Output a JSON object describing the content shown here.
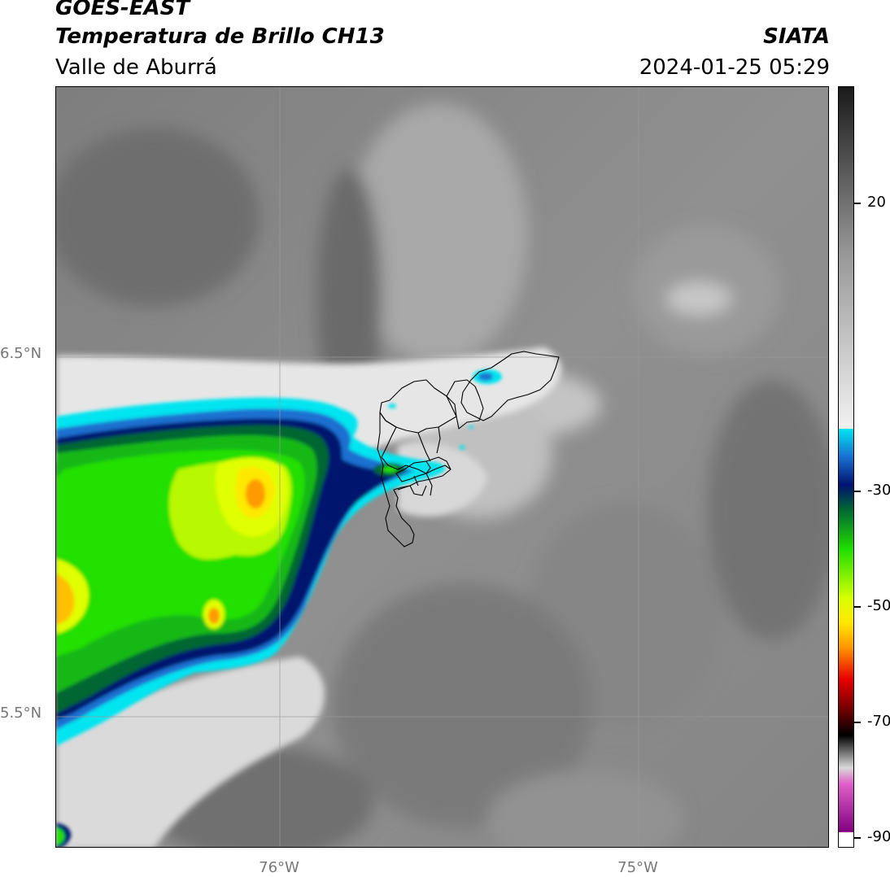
{
  "header": {
    "satellite": "GOES-EAST",
    "product": "Temperatura de Brillo CH13",
    "region": "Valle de Aburrá",
    "organization": "SIATA",
    "timestamp": "2024-01-25 05:29"
  },
  "map": {
    "lat_ticks": [
      "6.5°N",
      "5.5°N"
    ],
    "lon_ticks": [
      "76°W",
      "75°W"
    ],
    "gridlines": true
  },
  "colorbar": {
    "tick_labels": [
      "20",
      "-30",
      "-50",
      "-70",
      "-90"
    ],
    "colors": {
      "warm_dark": "#1a1a1a",
      "warm_light": "#f2f2f2",
      "cyan": "#00e5f0",
      "blue": "#0a3aa0",
      "navy": "#00136e",
      "dark_green": "#006633",
      "green": "#22e000",
      "yellow_green": "#d8ff00",
      "yellow": "#ffe800",
      "orange": "#ff9a00",
      "red": "#e80000",
      "dark_red": "#6a0000",
      "black": "#000000",
      "magenta": "#e060c8",
      "purple": "#800080"
    }
  }
}
